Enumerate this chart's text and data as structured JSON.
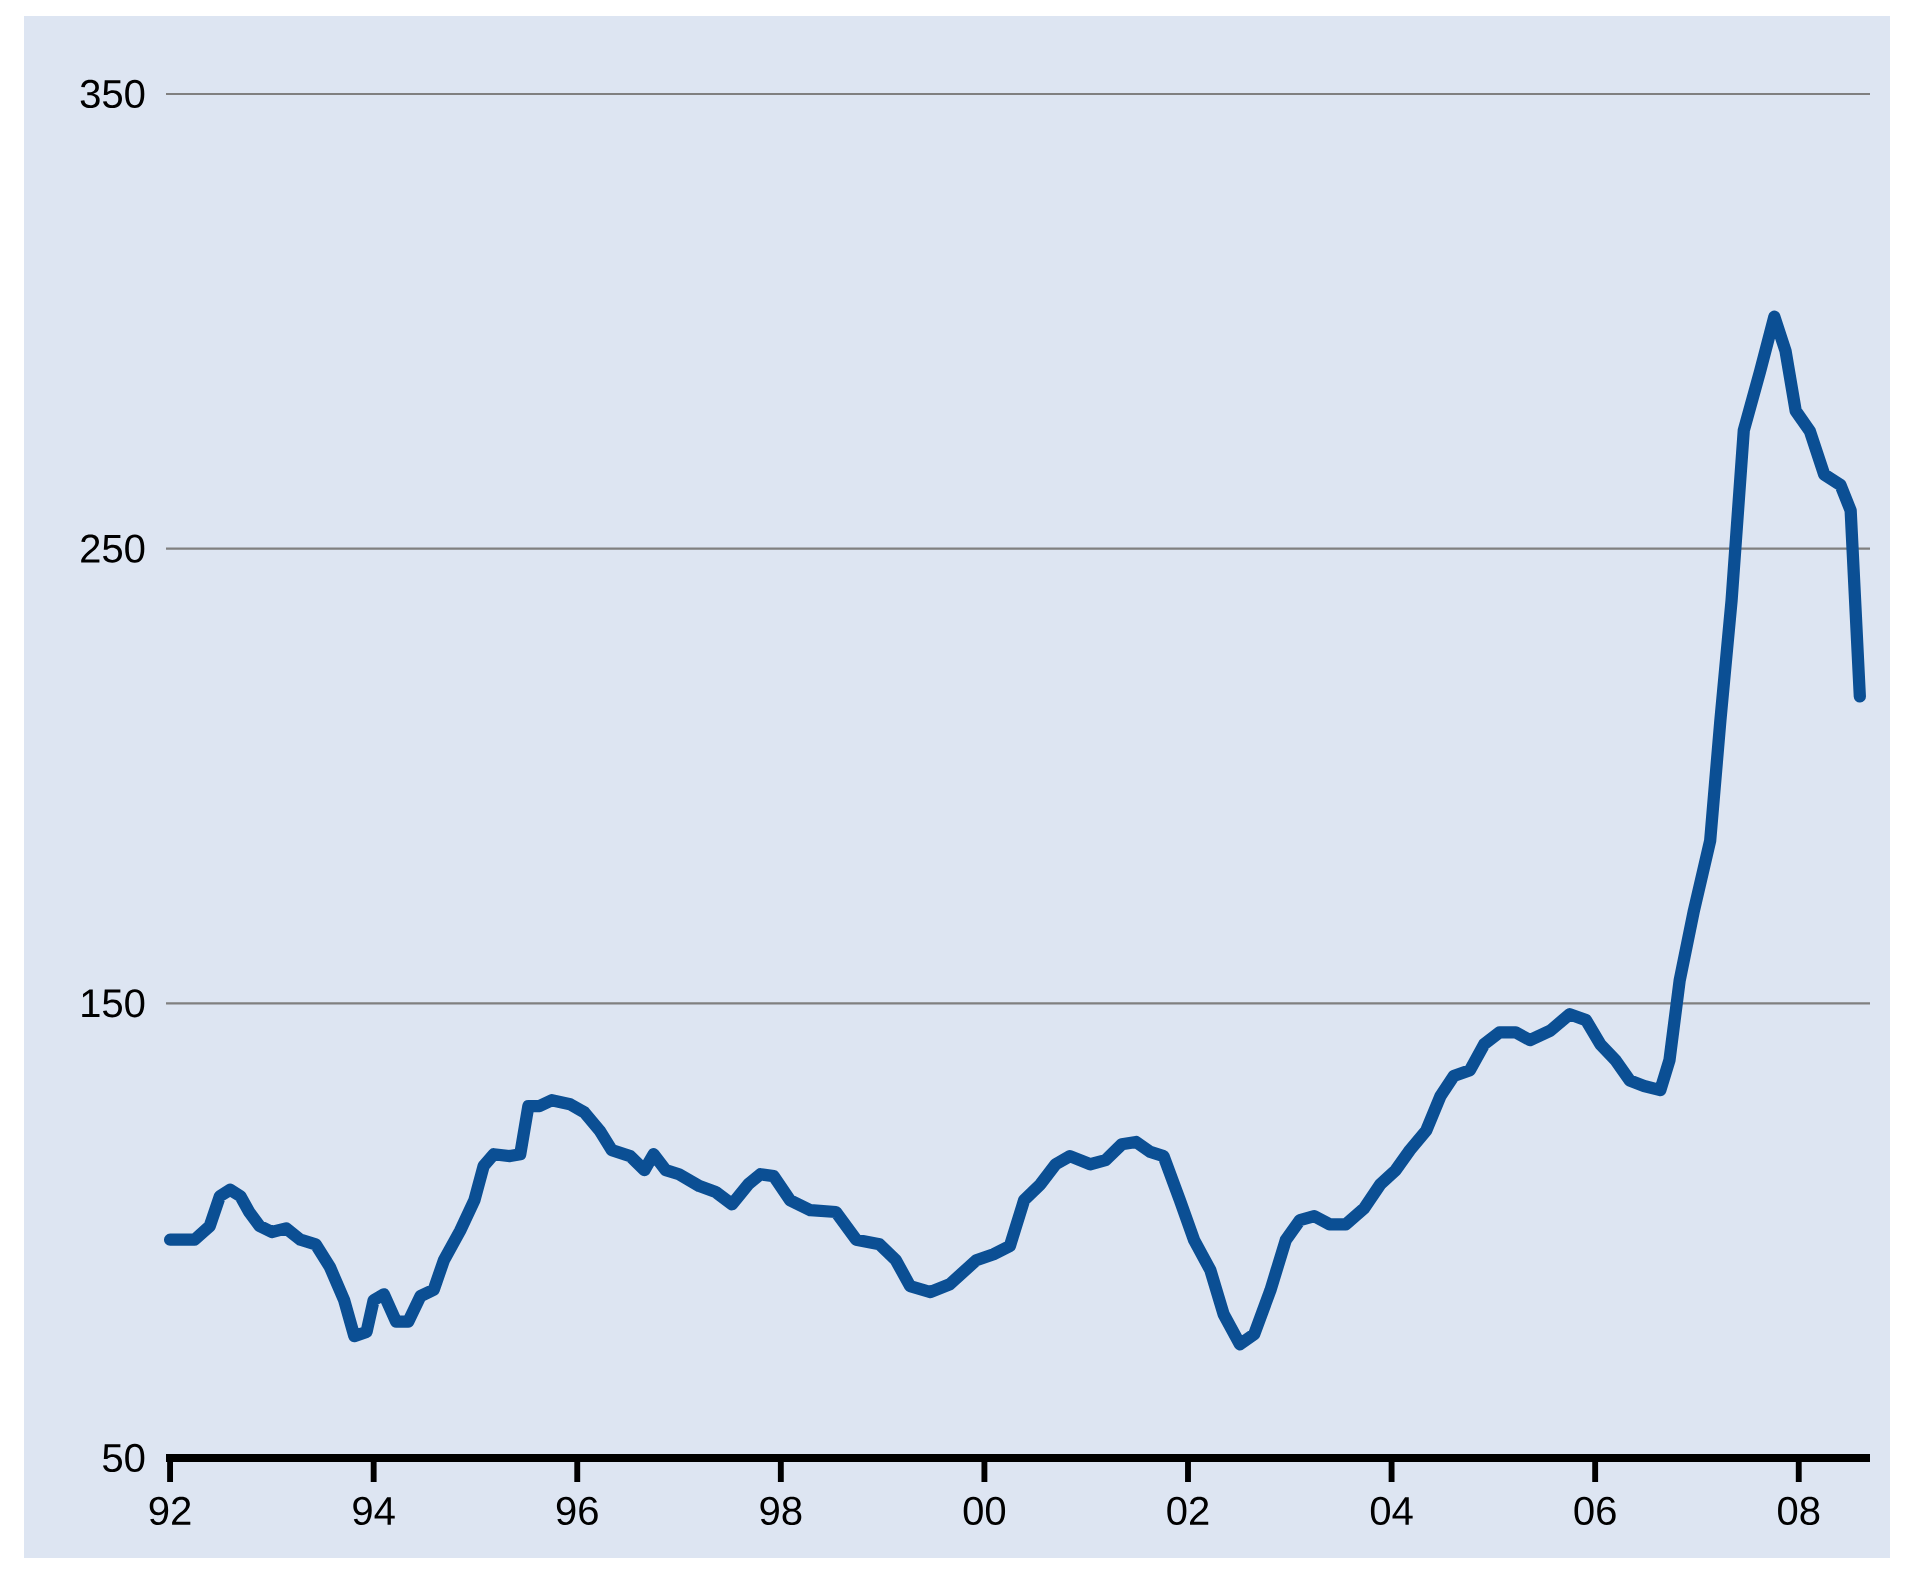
{
  "chart_data": {
    "type": "line",
    "xlim": [
      1991.96,
      2008.7
    ],
    "ylim": [
      50,
      350
    ],
    "xticks": [
      {
        "value": 1992,
        "label": "92"
      },
      {
        "value": 1994,
        "label": "94"
      },
      {
        "value": 1996,
        "label": "96"
      },
      {
        "value": 1998,
        "label": "98"
      },
      {
        "value": 2000,
        "label": "00"
      },
      {
        "value": 2002,
        "label": "02"
      },
      {
        "value": 2004,
        "label": "04"
      },
      {
        "value": 2006,
        "label": "06"
      },
      {
        "value": 2008,
        "label": "08"
      }
    ],
    "yticks": [
      50,
      150,
      250,
      350
    ],
    "grid": "y",
    "marker": "none",
    "line_style": "solid",
    "series": [
      {
        "color": "#0b4f94",
        "x": [
          1992.0,
          1992.24,
          1992.39,
          1992.49,
          1992.59,
          1992.69,
          1992.78,
          1992.88,
          1993.0,
          1993.14,
          1993.28,
          1993.43,
          1993.57,
          1993.71,
          1993.81,
          1993.93,
          1994.0,
          1994.1,
          1994.22,
          1994.34,
          1994.46,
          1994.59,
          1994.69,
          1994.85,
          1994.99,
          1995.08,
          1995.18,
          1995.34,
          1995.44,
          1995.52,
          1995.63,
          1995.75,
          1995.93,
          1996.07,
          1996.22,
          1996.34,
          1996.52,
          1996.66,
          1996.75,
          1996.87,
          1997.0,
          1997.2,
          1997.36,
          1997.52,
          1997.68,
          1997.8,
          1997.93,
          1998.09,
          1998.29,
          1998.54,
          1998.74,
          1998.97,
          1999.13,
          1999.27,
          1999.47,
          1999.66,
          1999.92,
          2000.09,
          2000.25,
          2000.39,
          2000.55,
          2000.7,
          2000.84,
          2001.04,
          2001.19,
          2001.35,
          2001.49,
          2001.63,
          2001.76,
          2001.92,
          2002.06,
          2002.22,
          2002.35,
          2002.51,
          2002.65,
          2002.81,
          2002.96,
          2003.1,
          2003.24,
          2003.39,
          2003.55,
          2003.73,
          2003.89,
          2004.04,
          2004.18,
          2004.34,
          2004.48,
          2004.61,
          2004.77,
          2004.91,
          2005.06,
          2005.22,
          2005.36,
          2005.56,
          2005.75,
          2005.91,
          2006.05,
          2006.2,
          2006.34,
          2006.48,
          2006.64,
          2006.73,
          2006.83,
          2006.97,
          2007.13,
          2007.23,
          2007.34,
          2007.46,
          2007.62,
          2007.76,
          2007.87,
          2007.97,
          2008.11,
          2008.25,
          2008.41,
          2008.51,
          2008.6
        ],
        "values": [
          98,
          98,
          101,
          107.6,
          109,
          107.6,
          104,
          101,
          99.7,
          100.5,
          98,
          97,
          92,
          84.7,
          76.8,
          77.7,
          84.7,
          86,
          80,
          80,
          85.6,
          87,
          93.5,
          100,
          106.7,
          114.2,
          116.8,
          116.4,
          116.8,
          127.4,
          127.4,
          128.7,
          127.8,
          126,
          122,
          117.7,
          116.4,
          113.3,
          116.8,
          113.3,
          112.4,
          109.8,
          108.5,
          105.8,
          110.2,
          112.4,
          112,
          106.7,
          104.5,
          104.1,
          98,
          97,
          93.5,
          87.8,
          86.5,
          88.2,
          93.5,
          94.8,
          96.6,
          106.7,
          110.2,
          114.6,
          116.4,
          114.6,
          115.5,
          119,
          119.5,
          117.3,
          116.4,
          106.7,
          97.9,
          91.3,
          81.6,
          75,
          77.2,
          86.9,
          97.9,
          102.3,
          103.2,
          101.4,
          101.4,
          104.9,
          110.2,
          113.3,
          117.7,
          122,
          129.6,
          134,
          135.3,
          141,
          143.6,
          143.6,
          141.9,
          144,
          147.6,
          146.3,
          141,
          137.5,
          133,
          131.8,
          130.9,
          137.5,
          155,
          170.4,
          185.8,
          212.2,
          238.6,
          276,
          289,
          301,
          293.5,
          280.3,
          275.8,
          266.3,
          264,
          258.4,
          217.5
        ]
      }
    ]
  }
}
